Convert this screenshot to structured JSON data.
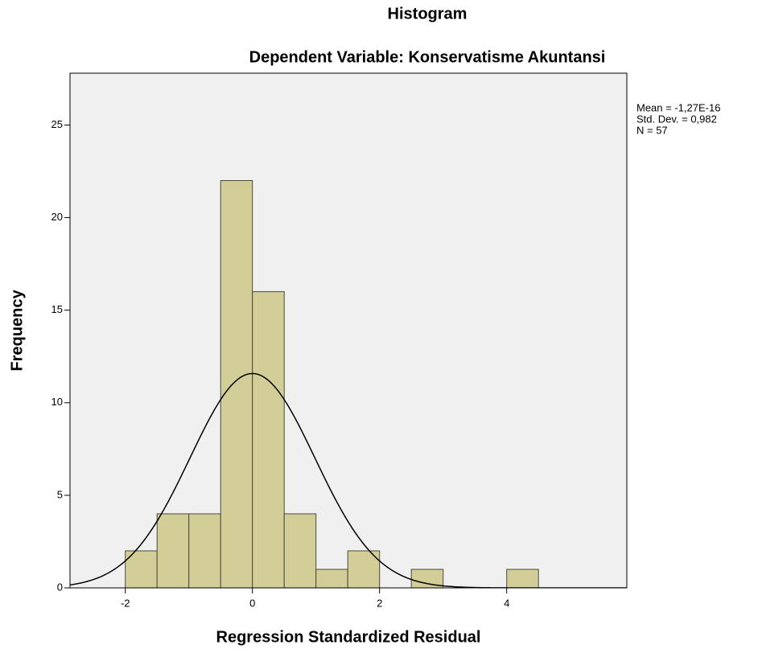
{
  "chart_data": {
    "type": "histogram",
    "title": "Histogram",
    "subtitle": "Dependent Variable: Konservatisme Akuntansi",
    "x_label": "Regression Standardized Residual",
    "y_label": "Frequency",
    "bins": [
      -2,
      -1.5,
      -1,
      -0.5,
      0,
      0.5,
      1,
      1.5,
      2,
      2.5,
      3,
      3.5,
      4,
      4.5
    ],
    "counts": [
      2,
      4,
      4,
      22,
      16,
      4,
      1,
      2,
      0,
      1,
      0,
      0,
      1
    ],
    "color": "#d3ce97",
    "edge_color": "#4a4a3a",
    "background": "#f0f0f0",
    "xlim": [
      -2.87,
      5.89
    ],
    "ylim": [
      0,
      27.8
    ],
    "xticks": [
      -2,
      0,
      2,
      4
    ],
    "yticks": [
      0,
      5,
      10,
      15,
      20,
      25
    ],
    "normal_curve": {
      "mean": -1.27e-16,
      "std": 0.982,
      "n": 57,
      "labels": [
        "Mean = -1,27E-16",
        "Std. Dev. = 0,982",
        "N = 57"
      ]
    }
  }
}
